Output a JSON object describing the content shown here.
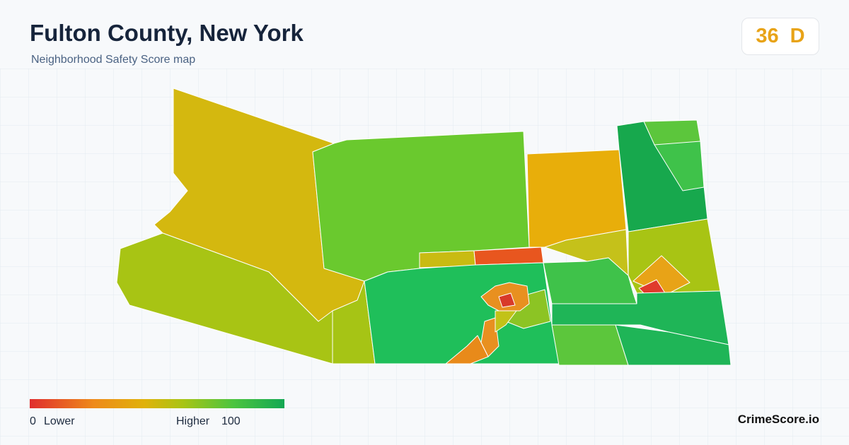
{
  "header": {
    "title": "Fulton County, New York",
    "subtitle": "Neighborhood Safety Score map"
  },
  "score": {
    "value": 36,
    "grade": "D"
  },
  "legend": {
    "min": 0,
    "min_label": "Lower",
    "max_label": "Higher",
    "max": 100
  },
  "brand": "CrimeScore.io"
}
